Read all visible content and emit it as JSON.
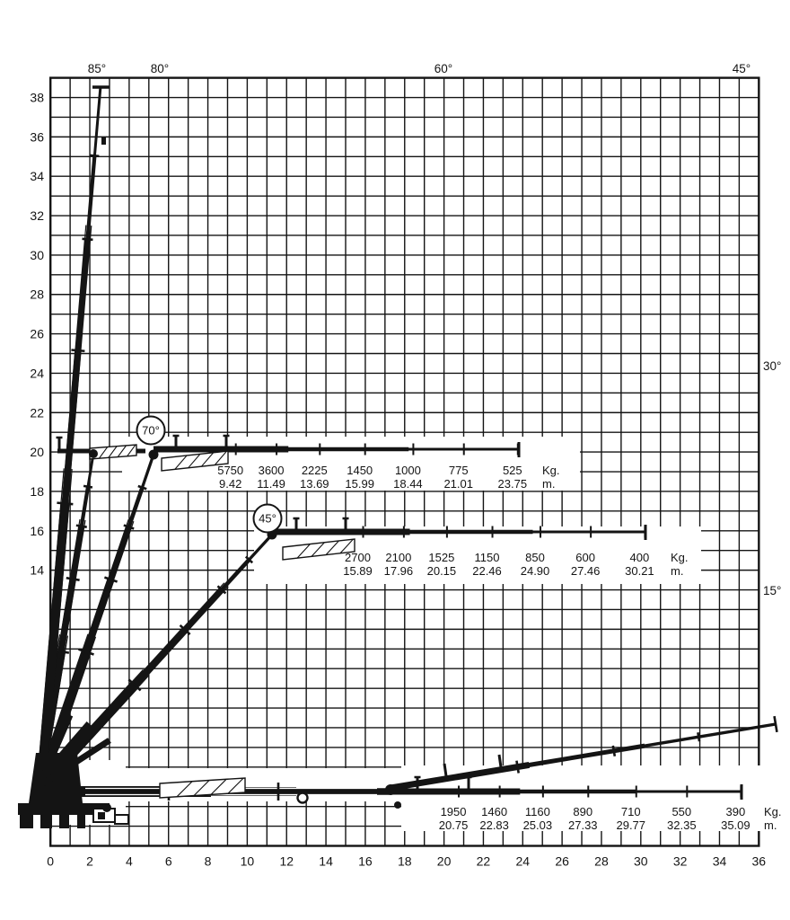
{
  "chart_data": {
    "type": "line",
    "title": "",
    "description": "Crane boom reach / load capacity diagram",
    "x_axis": {
      "unit": "m.",
      "range": [
        0,
        36
      ],
      "ticks": [
        0,
        2,
        4,
        6,
        8,
        10,
        12,
        14,
        16,
        18,
        20,
        22,
        24,
        26,
        28,
        30,
        32,
        34,
        36
      ]
    },
    "y_axis": {
      "unit": "m.",
      "range": [
        0,
        39
      ],
      "ticks": [
        38,
        36,
        34,
        32,
        30,
        28,
        26,
        24,
        22,
        20,
        18,
        16,
        14
      ]
    },
    "boom_angle_marks": {
      "top": [
        "85°",
        "80°",
        "60°",
        "45°"
      ],
      "right": [
        "30°",
        "15°"
      ]
    },
    "series": [
      {
        "angle_label": "70°",
        "load_unit": "Kg.",
        "outreach_unit": "m.",
        "points": [
          {
            "load": "5750",
            "outreach": "9.42"
          },
          {
            "load": "3600",
            "outreach": "11.49"
          },
          {
            "load": "2225",
            "outreach": "13.69"
          },
          {
            "load": "1450",
            "outreach": "15.99"
          },
          {
            "load": "1000",
            "outreach": "18.44"
          },
          {
            "load": "775",
            "outreach": "21.01"
          },
          {
            "load": "525",
            "outreach": "23.75"
          }
        ]
      },
      {
        "angle_label": "45°",
        "load_unit": "Kg.",
        "outreach_unit": "m.",
        "points": [
          {
            "load": "2700",
            "outreach": "15.89"
          },
          {
            "load": "2100",
            "outreach": "17.96"
          },
          {
            "load": "1525",
            "outreach": "20.15"
          },
          {
            "load": "1150",
            "outreach": "22.46"
          },
          {
            "load": "850",
            "outreach": "24.90"
          },
          {
            "load": "600",
            "outreach": "27.46"
          },
          {
            "load": "400",
            "outreach": "30.21"
          }
        ]
      },
      {
        "angle_label": "",
        "load_unit": "Kg.",
        "outreach_unit": "m.",
        "points": [
          {
            "load": "1950",
            "outreach": "20.75"
          },
          {
            "load": "1460",
            "outreach": "22.83"
          },
          {
            "load": "1160",
            "outreach": "25.03"
          },
          {
            "load": "890",
            "outreach": "27.33"
          },
          {
            "load": "710",
            "outreach": "29.77"
          },
          {
            "load": "550",
            "outreach": "32.35"
          },
          {
            "load": "390",
            "outreach": "35.09"
          }
        ]
      }
    ],
    "colors": {
      "ink": "#141414",
      "background": "#ffffff"
    }
  }
}
